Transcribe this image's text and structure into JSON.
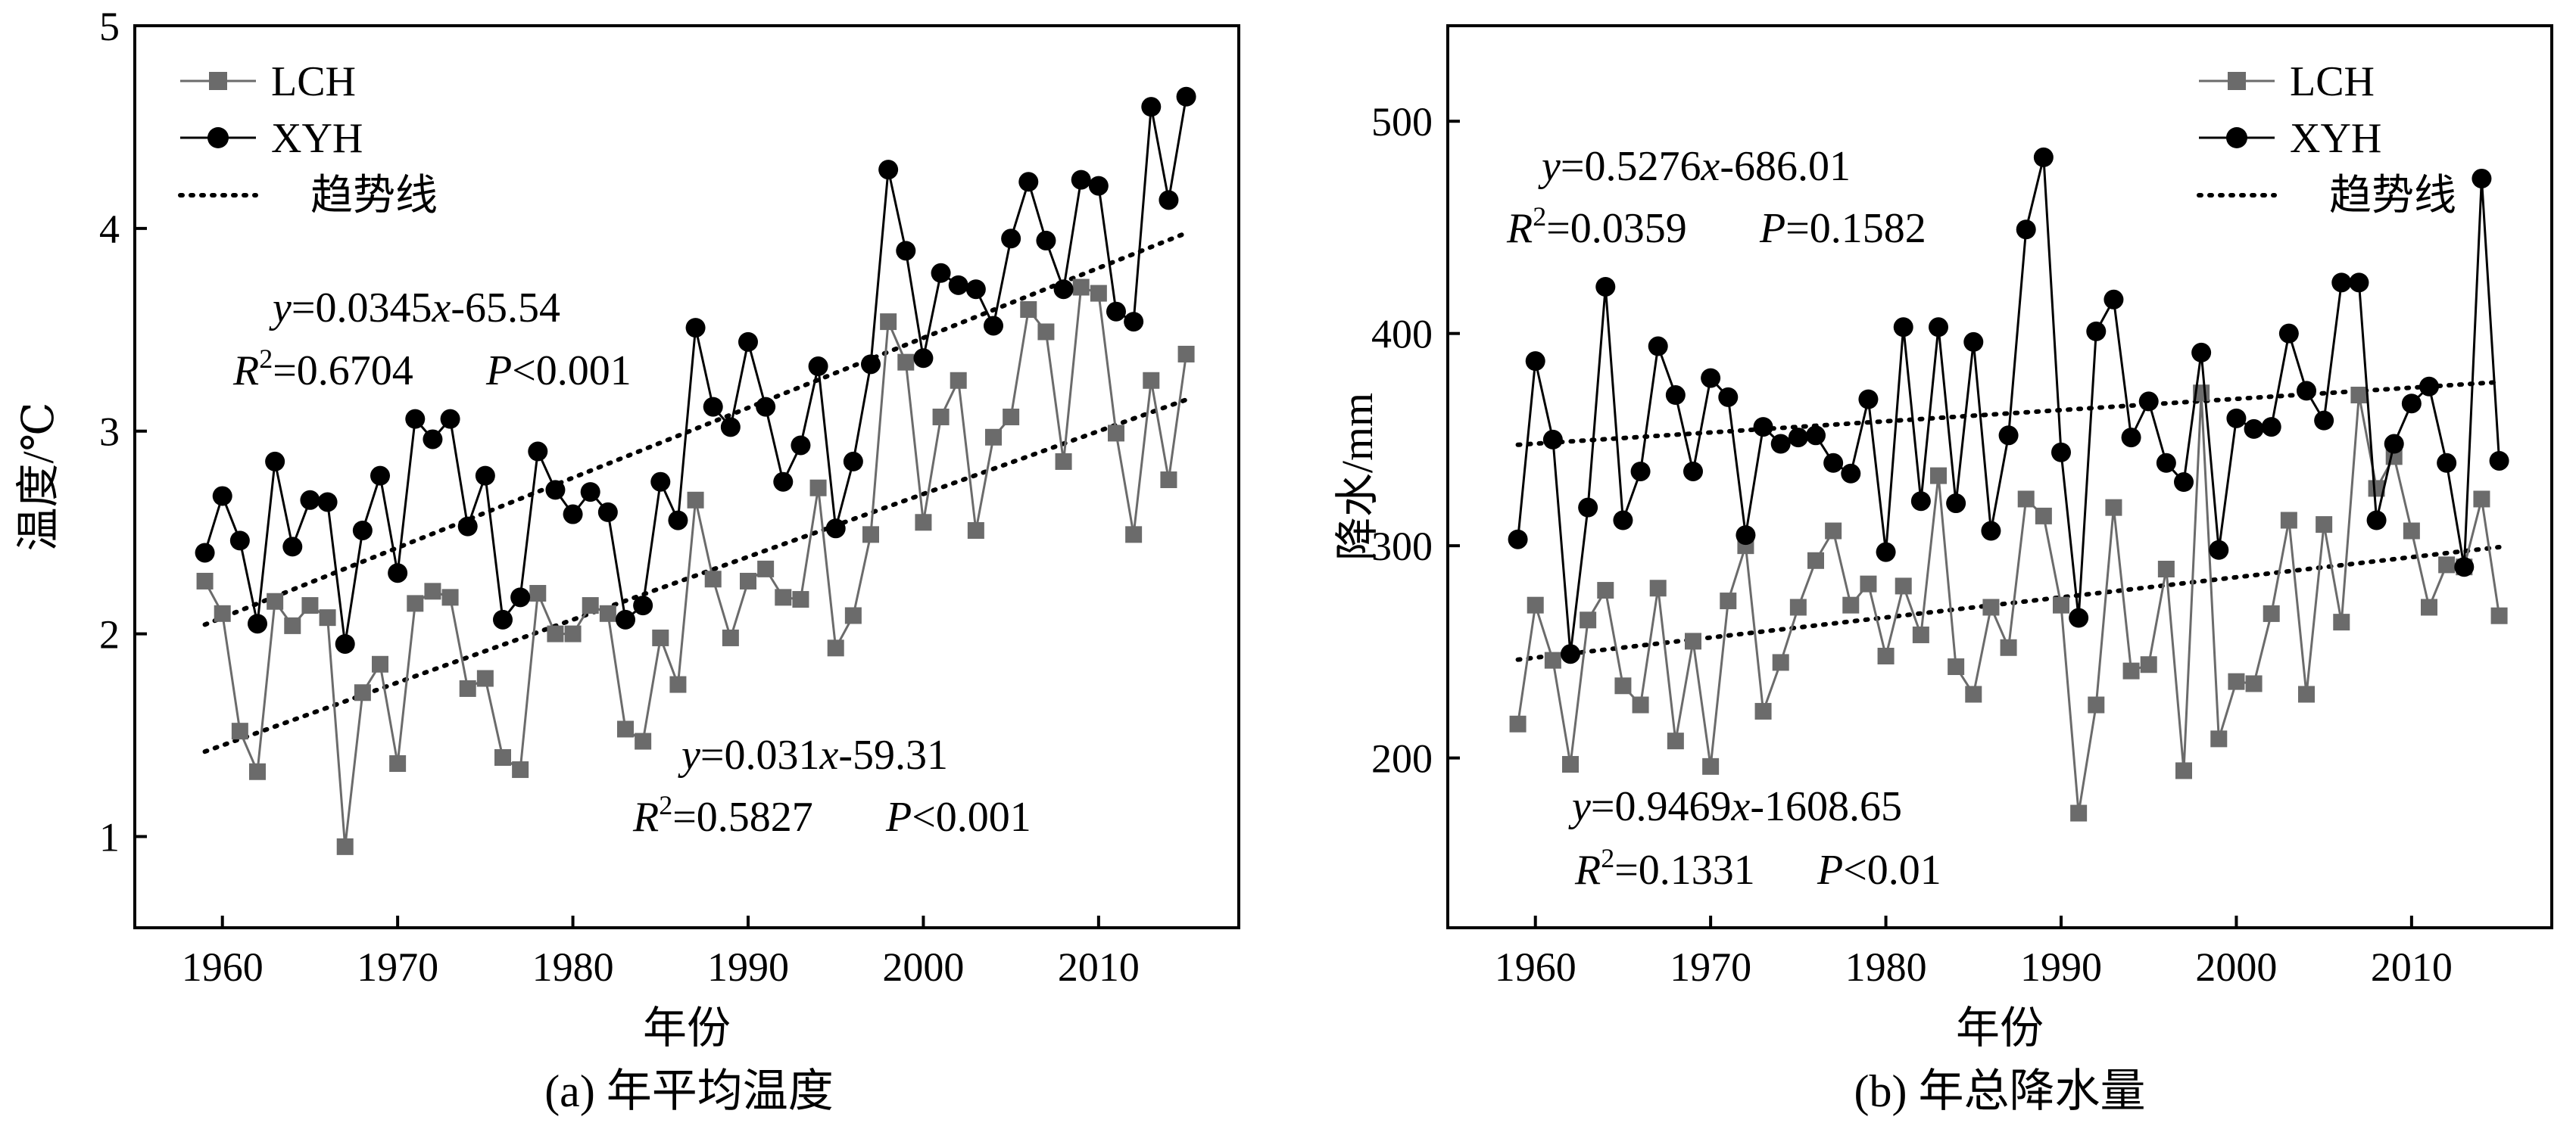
{
  "charts": [
    {
      "caption": "(a) 年平均温度",
      "type": "line",
      "xlabel": "年份",
      "ylabel": "温度/℃",
      "xlim": [
        1955,
        2018
      ],
      "ylim": [
        0.55,
        5
      ],
      "xticks": [
        1960,
        1970,
        1980,
        1990,
        2000,
        2010
      ],
      "yticks": [
        1,
        2,
        3,
        4,
        5
      ],
      "legend": {
        "position": "top-left",
        "items": [
          "LCH",
          "XYH",
          "趋势线"
        ]
      },
      "equations": [
        {
          "eq_y": "y",
          "eq_rhs": "=0.0345",
          "eq_x": "x",
          "eq_const": "-65.54",
          "r_R": "R",
          "r_sup": "2",
          "r_val": "=0.6704",
          "p_P": "P",
          "p_val": "<0.001"
        },
        {
          "eq_y": "y",
          "eq_rhs": "=0.031",
          "eq_x": "x",
          "eq_const": "-59.31",
          "r_R": "R",
          "r_sup": "2",
          "r_val": "=0.5827",
          "p_P": "P",
          "p_val": "<0.001"
        }
      ]
    },
    {
      "caption": "(b) 年总降水量",
      "type": "line",
      "xlabel": "年份",
      "ylabel": "降水/mm",
      "xlim": [
        1955,
        2018
      ],
      "ylim": [
        120,
        545
      ],
      "xticks": [
        1960,
        1970,
        1980,
        1990,
        2000,
        2010
      ],
      "yticks": [
        200,
        300,
        400,
        500
      ],
      "legend": {
        "position": "top-right",
        "items": [
          "LCH",
          "XYH",
          "趋势线"
        ]
      },
      "equations": [
        {
          "eq_y": "y",
          "eq_rhs": "=0.5276",
          "eq_x": "x",
          "eq_const": "-686.01",
          "r_R": "R",
          "r_sup": "2",
          "r_val": "=0.0359",
          "p_P": "P",
          "p_val": "=0.1582"
        },
        {
          "eq_y": "y",
          "eq_rhs": "=0.9469",
          "eq_x": "x",
          "eq_const": "-1608.65",
          "r_R": "R",
          "r_sup": "2",
          "r_val": "=0.1331",
          "p_P": "P",
          "p_val": "<0.01"
        }
      ]
    }
  ],
  "chart_data": [
    {
      "type": "line",
      "title": "(a) 年平均温度",
      "xlabel": "年份",
      "ylabel": "温度/℃",
      "x": [
        1959,
        1960,
        1961,
        1962,
        1963,
        1964,
        1965,
        1966,
        1967,
        1968,
        1969,
        1970,
        1971,
        1972,
        1973,
        1974,
        1975,
        1976,
        1977,
        1978,
        1979,
        1980,
        1981,
        1982,
        1983,
        1984,
        1985,
        1986,
        1987,
        1988,
        1989,
        1990,
        1991,
        1992,
        1993,
        1994,
        1995,
        1996,
        1997,
        1998,
        1999,
        2000,
        2001,
        2002,
        2003,
        2004,
        2005,
        2006,
        2007,
        2008,
        2009,
        2010,
        2011,
        2012,
        2013,
        2014,
        2015
      ],
      "series": [
        {
          "name": "LCH",
          "color": "#6b6b6b",
          "marker": "square",
          "values": [
            2.26,
            2.1,
            1.52,
            1.32,
            2.16,
            2.04,
            2.14,
            2.08,
            0.95,
            1.71,
            1.85,
            1.36,
            2.15,
            2.21,
            2.18,
            1.73,
            1.78,
            1.39,
            1.33,
            2.2,
            2.0,
            2.0,
            2.14,
            2.1,
            1.53,
            1.47,
            1.98,
            1.75,
            2.66,
            2.27,
            1.98,
            2.26,
            2.32,
            2.18,
            2.17,
            2.72,
            1.93,
            2.09,
            2.49,
            3.54,
            3.34,
            2.55,
            3.07,
            3.25,
            2.51,
            2.97,
            3.07,
            3.6,
            3.49,
            2.85,
            3.71,
            3.68,
            2.99,
            2.49,
            3.25,
            2.76,
            3.38
          ]
        },
        {
          "name": "XYH",
          "color": "#000000",
          "marker": "circle",
          "values": [
            2.4,
            2.68,
            2.46,
            2.05,
            2.85,
            2.43,
            2.66,
            2.65,
            1.95,
            2.51,
            2.78,
            2.3,
            3.06,
            2.96,
            3.06,
            2.53,
            2.78,
            2.07,
            2.18,
            2.9,
            2.71,
            2.59,
            2.7,
            2.6,
            2.07,
            2.14,
            2.75,
            2.56,
            3.51,
            3.12,
            3.02,
            3.44,
            3.12,
            2.75,
            2.93,
            3.32,
            2.52,
            2.85,
            3.33,
            4.29,
            3.89,
            3.36,
            3.78,
            3.72,
            3.7,
            3.52,
            3.95,
            4.23,
            3.94,
            3.7,
            4.24,
            4.21,
            3.59,
            3.54,
            4.6,
            4.14,
            4.65
          ]
        }
      ],
      "trendlines": [
        {
          "for": "XYH",
          "slope": 0.0345,
          "intercept": -65.54,
          "x_range": [
            1959,
            2015
          ]
        },
        {
          "for": "LCH",
          "slope": 0.031,
          "intercept": -59.31,
          "x_range": [
            1959,
            2015
          ]
        }
      ],
      "xlim": [
        1955,
        2018
      ],
      "ylim": [
        0.55,
        5
      ],
      "grid": false,
      "legend_position": "top-left"
    },
    {
      "type": "line",
      "title": "(b) 年总降水量",
      "xlabel": "年份",
      "ylabel": "降水/mm",
      "x": [
        1959,
        1960,
        1961,
        1962,
        1963,
        1964,
        1965,
        1966,
        1967,
        1968,
        1969,
        1970,
        1971,
        1972,
        1973,
        1974,
        1975,
        1976,
        1977,
        1978,
        1979,
        1980,
        1981,
        1982,
        1983,
        1984,
        1985,
        1986,
        1987,
        1988,
        1989,
        1990,
        1991,
        1992,
        1993,
        1994,
        1995,
        1996,
        1997,
        1998,
        1999,
        2000,
        2001,
        2002,
        2003,
        2004,
        2005,
        2006,
        2007,
        2008,
        2009,
        2010,
        2011,
        2012,
        2013,
        2014,
        2015
      ],
      "series": [
        {
          "name": "LCH",
          "color": "#6b6b6b",
          "marker": "square",
          "values": [
            216,
            272,
            246,
            197,
            265,
            279,
            234,
            225,
            280,
            208,
            255,
            196,
            274,
            300,
            222,
            245,
            271,
            293,
            307,
            272,
            282,
            248,
            281,
            258,
            333,
            243,
            230,
            271,
            252,
            322,
            314,
            272,
            174,
            225,
            318,
            241,
            244,
            289,
            194,
            372,
            209,
            236,
            235,
            268,
            312,
            230,
            310,
            264,
            371,
            327,
            342,
            307,
            271,
            291,
            290,
            322,
            267
          ]
        },
        {
          "name": "XYH",
          "color": "#000000",
          "marker": "circle",
          "values": [
            303,
            387,
            350,
            249,
            318,
            422,
            312,
            335,
            394,
            371,
            335,
            379,
            370,
            305,
            356,
            348,
            351,
            352,
            339,
            334,
            369,
            297,
            403,
            321,
            403,
            320,
            396,
            307,
            352,
            449,
            483,
            344,
            266,
            401,
            416,
            351,
            368,
            339,
            330,
            391,
            298,
            360,
            355,
            356,
            400,
            373,
            359,
            424,
            424,
            312,
            348,
            367,
            375,
            339,
            290,
            473,
            340
          ]
        }
      ],
      "trendlines": [
        {
          "for": "XYH",
          "slope": 0.5276,
          "intercept": -686.01,
          "x_range": [
            1959,
            2015
          ]
        },
        {
          "for": "LCH",
          "slope": 0.9469,
          "intercept": -1608.65,
          "x_range": [
            1959,
            2015
          ]
        }
      ],
      "xlim": [
        1955,
        2018
      ],
      "ylim": [
        120,
        545
      ],
      "grid": false,
      "legend_position": "top-right"
    }
  ]
}
